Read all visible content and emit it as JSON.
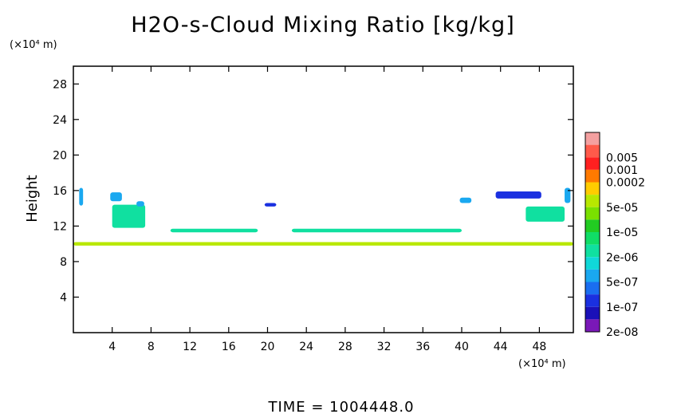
{
  "chart_data": {
    "type": "heatmap",
    "title": "H2O-s-Cloud Mixing Ratio [kg/kg]",
    "ylabel": "Height",
    "x_unit": "(×10⁴ m)",
    "y_unit": "(×10⁴ m)",
    "xlim": [
      0,
      51.5
    ],
    "ylim": [
      0,
      30
    ],
    "x_ticks": [
      "4",
      "8",
      "12",
      "16",
      "20",
      "24",
      "28",
      "32",
      "36",
      "40",
      "44",
      "48"
    ],
    "y_ticks": [
      "4",
      "8",
      "12",
      "16",
      "20",
      "24",
      "28"
    ],
    "legend": [
      {
        "label": "",
        "color": "#f4a0a0"
      },
      {
        "label": "0.005",
        "color": "#ff5a4a"
      },
      {
        "label": "0.001",
        "color": "#ff2020"
      },
      {
        "label": "0.0002",
        "color": "#ff7a00"
      },
      {
        "label": "",
        "color": "#ffcc00"
      },
      {
        "label": "5e-05",
        "color": "#b8e800"
      },
      {
        "label": "",
        "color": "#7ae000"
      },
      {
        "label": "1e-05",
        "color": "#22cc22"
      },
      {
        "label": "",
        "color": "#10dd66"
      },
      {
        "label": "2e-06",
        "color": "#10e0a0"
      },
      {
        "label": "",
        "color": "#10d8d8"
      },
      {
        "label": "5e-07",
        "color": "#1aa8f0"
      },
      {
        "label": "",
        "color": "#1a6ef0"
      },
      {
        "label": "1e-07",
        "color": "#1a30e0"
      },
      {
        "label": "",
        "color": "#1a10b8"
      },
      {
        "label": "2e-08",
        "color": "#7a18b8"
      }
    ],
    "regions": [
      {
        "x": [
          0,
          51.5
        ],
        "y": [
          9.8,
          10.2
        ],
        "level": "5e-05"
      },
      {
        "x": [
          0.6,
          1.0
        ],
        "y": [
          14.3,
          16.3
        ],
        "level": "5e-07"
      },
      {
        "x": [
          50.6,
          51.2
        ],
        "y": [
          14.6,
          16.3
        ],
        "level": "5e-07"
      },
      {
        "x": [
          3.8,
          5.0
        ],
        "y": [
          14.8,
          15.8
        ],
        "level": "5e-07"
      },
      {
        "x": [
          4.0,
          7.4
        ],
        "y": [
          11.8,
          14.4
        ],
        "level": "2e-06"
      },
      {
        "x": [
          6.5,
          7.3
        ],
        "y": [
          14.2,
          14.8
        ],
        "level": "5e-07"
      },
      {
        "x": [
          10.0,
          19.0
        ],
        "y": [
          11.3,
          11.7
        ],
        "level": "2e-06"
      },
      {
        "x": [
          19.7,
          20.9
        ],
        "y": [
          14.2,
          14.6
        ],
        "level": "1e-07"
      },
      {
        "x": [
          22.5,
          40.0
        ],
        "y": [
          11.3,
          11.7
        ],
        "level": "2e-06"
      },
      {
        "x": [
          39.8,
          41.0
        ],
        "y": [
          14.6,
          15.2
        ],
        "level": "5e-07"
      },
      {
        "x": [
          46.6,
          50.6
        ],
        "y": [
          12.5,
          14.2
        ],
        "level": "2e-06"
      },
      {
        "x": [
          43.5,
          48.2
        ],
        "y": [
          15.1,
          15.9
        ],
        "level": "1e-07"
      }
    ]
  },
  "time_text": "TIME  =  1004448.0"
}
